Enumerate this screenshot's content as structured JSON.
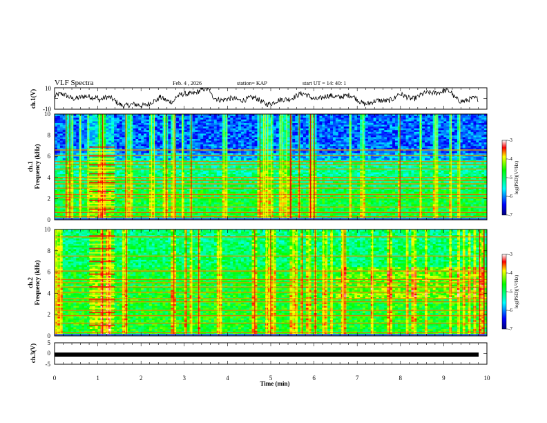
{
  "header": {
    "title": "VLF Spectra",
    "date": "Feb. 4  , 2026",
    "station": "station= KAP",
    "start_ut": "start  UT =   14: 40: 1"
  },
  "chart_data": [
    {
      "type": "line",
      "name": "ch1-waveform",
      "ylabel": "ch.1(V)",
      "ylim": [
        -10,
        10
      ],
      "yticks": [
        "10",
        "-10"
      ],
      "xlim": [
        0,
        10
      ],
      "line_color": "#000000"
    },
    {
      "type": "heatmap",
      "name": "ch1-spectrogram",
      "ylabel_line1": "ch.1",
      "ylabel_line2": "Frequency (kHz)",
      "ylim": [
        0,
        10
      ],
      "yticks": [
        "0",
        "2",
        "4",
        "6",
        "8",
        "10"
      ],
      "xlim": [
        0,
        10
      ],
      "colorbar": {
        "label": "log(PSD)(V²/Hz)",
        "ticks": [
          "-3",
          "-4",
          "-5",
          "-6",
          "-7"
        ],
        "range": [
          -7,
          -3
        ]
      },
      "bands_khz": [
        0.3,
        0.7,
        1.2,
        2.1,
        2.4,
        3.0,
        3.4,
        3.7,
        4.0,
        4.8,
        5.2,
        5.5,
        6.1,
        6.6
      ],
      "burst_min": [
        0.8,
        1.4
      ]
    },
    {
      "type": "heatmap",
      "name": "ch2-spectrogram",
      "ylabel_line1": "ch.2",
      "ylabel_line2": "Frequency (kHz)",
      "ylim": [
        0,
        10
      ],
      "yticks": [
        "0",
        "2",
        "4",
        "6",
        "8",
        "10"
      ],
      "xlim": [
        0,
        10
      ],
      "colorbar": {
        "label": "log(PSD)(V²/Hz)",
        "ticks": [
          "-3",
          "-4",
          "-5",
          "-6",
          "-7"
        ],
        "range": [
          -7,
          -3
        ]
      },
      "bands_khz": [
        0.3,
        1.2,
        1.9,
        2.4,
        3.2,
        3.5,
        4.1,
        4.6,
        5.0,
        5.3,
        6.1,
        7.5,
        9.3
      ],
      "burst_min": [
        0.8,
        1.4
      ]
    },
    {
      "type": "line",
      "name": "ch3-waveform",
      "ylabel": "ch.3(V)",
      "ylim": [
        -5,
        5
      ],
      "yticks": [
        "5",
        "0",
        "-5"
      ],
      "xlim": [
        0,
        10
      ],
      "xlabel": "Time  (min)",
      "xticks": [
        "0",
        "1",
        "2",
        "3",
        "4",
        "5",
        "6",
        "7",
        "8",
        "9",
        "10"
      ],
      "level_v": -0.5,
      "line_color": "#000000"
    }
  ]
}
